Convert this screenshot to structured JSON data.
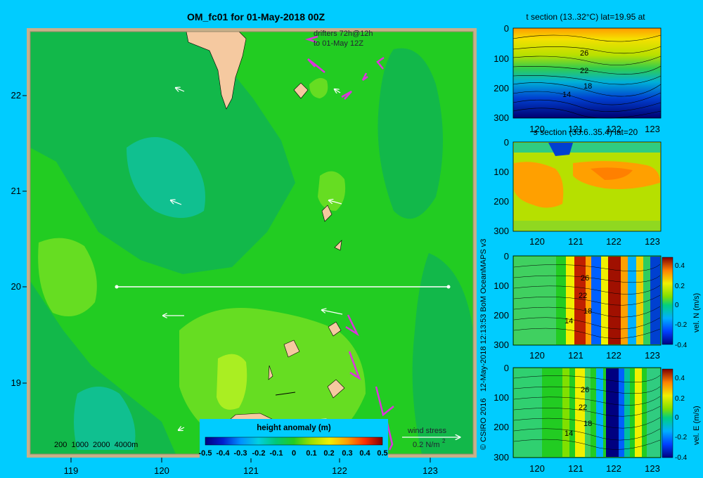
{
  "title": "OM_fc01 for 01-May-2018 00Z",
  "map": {
    "lat_ticks": [
      "22",
      "21",
      "20",
      "19"
    ],
    "lon_ticks": [
      "119",
      "120",
      "121",
      "122",
      "123"
    ],
    "drifters_line1": "drifters 72h@12h",
    "drifters_line2": "to 01-May 12Z",
    "depth_legend": "200  1000  2000  4000m",
    "colorbar_title": "height anomaly  (m)",
    "colorbar_ticks": [
      "-0.5",
      "-0.4",
      "-0.3",
      "-0.2",
      "-0.1",
      "0",
      "0.1",
      "0.2",
      "0.3",
      "0.4",
      "0.5"
    ],
    "wind_stress_label": "wind stress",
    "wind_stress_value": "0.2 N/m",
    "wind_stress_exp": "2",
    "section_lat": 20,
    "section_lon_range": [
      119.5,
      123.2
    ]
  },
  "credit": "© CSIRO 2016   12-May-2018 12:13:53 BoM OceanMAPS v3",
  "panels": [
    {
      "title": "t section (13..32°C) lat=19.95 at",
      "y_ticks": [
        "0",
        "100",
        "200",
        "300"
      ],
      "x_ticks": [
        "120",
        "121",
        "122",
        "123"
      ],
      "contour_labels": [
        "26",
        "22",
        "18",
        "14"
      ]
    },
    {
      "title": "s section (33.6..35.4) lat=20",
      "y_ticks": [
        "0",
        "100",
        "200",
        "300"
      ],
      "x_ticks": [
        "120",
        "121",
        "122",
        "123"
      ]
    },
    {
      "title": "",
      "y_ticks": [
        "0",
        "100",
        "200",
        "300"
      ],
      "x_ticks": [
        "120",
        "121",
        "122",
        "123"
      ],
      "contour_labels": [
        "26",
        "22",
        "18",
        "14"
      ],
      "cbar_ticks": [
        "0.4",
        "0.2",
        "0",
        "-0.2",
        "-0.4"
      ],
      "cbar_label": "vel. N  (m/s)"
    },
    {
      "title": "",
      "y_ticks": [
        "0",
        "100",
        "200",
        "300"
      ],
      "x_ticks": [
        "120",
        "121",
        "122",
        "123"
      ],
      "contour_labels": [
        "26",
        "22",
        "18",
        "14"
      ],
      "cbar_ticks": [
        "0.4",
        "0.2",
        "0",
        "-0.2",
        "-0.4"
      ],
      "cbar_label": "vel. E  (m/s)"
    }
  ],
  "colors": {
    "background": "#00ccff",
    "map_base": "#22cc22",
    "land": "#f5c9a0",
    "drifter": "#dd33dd",
    "current_arrow": "#ffffff"
  }
}
